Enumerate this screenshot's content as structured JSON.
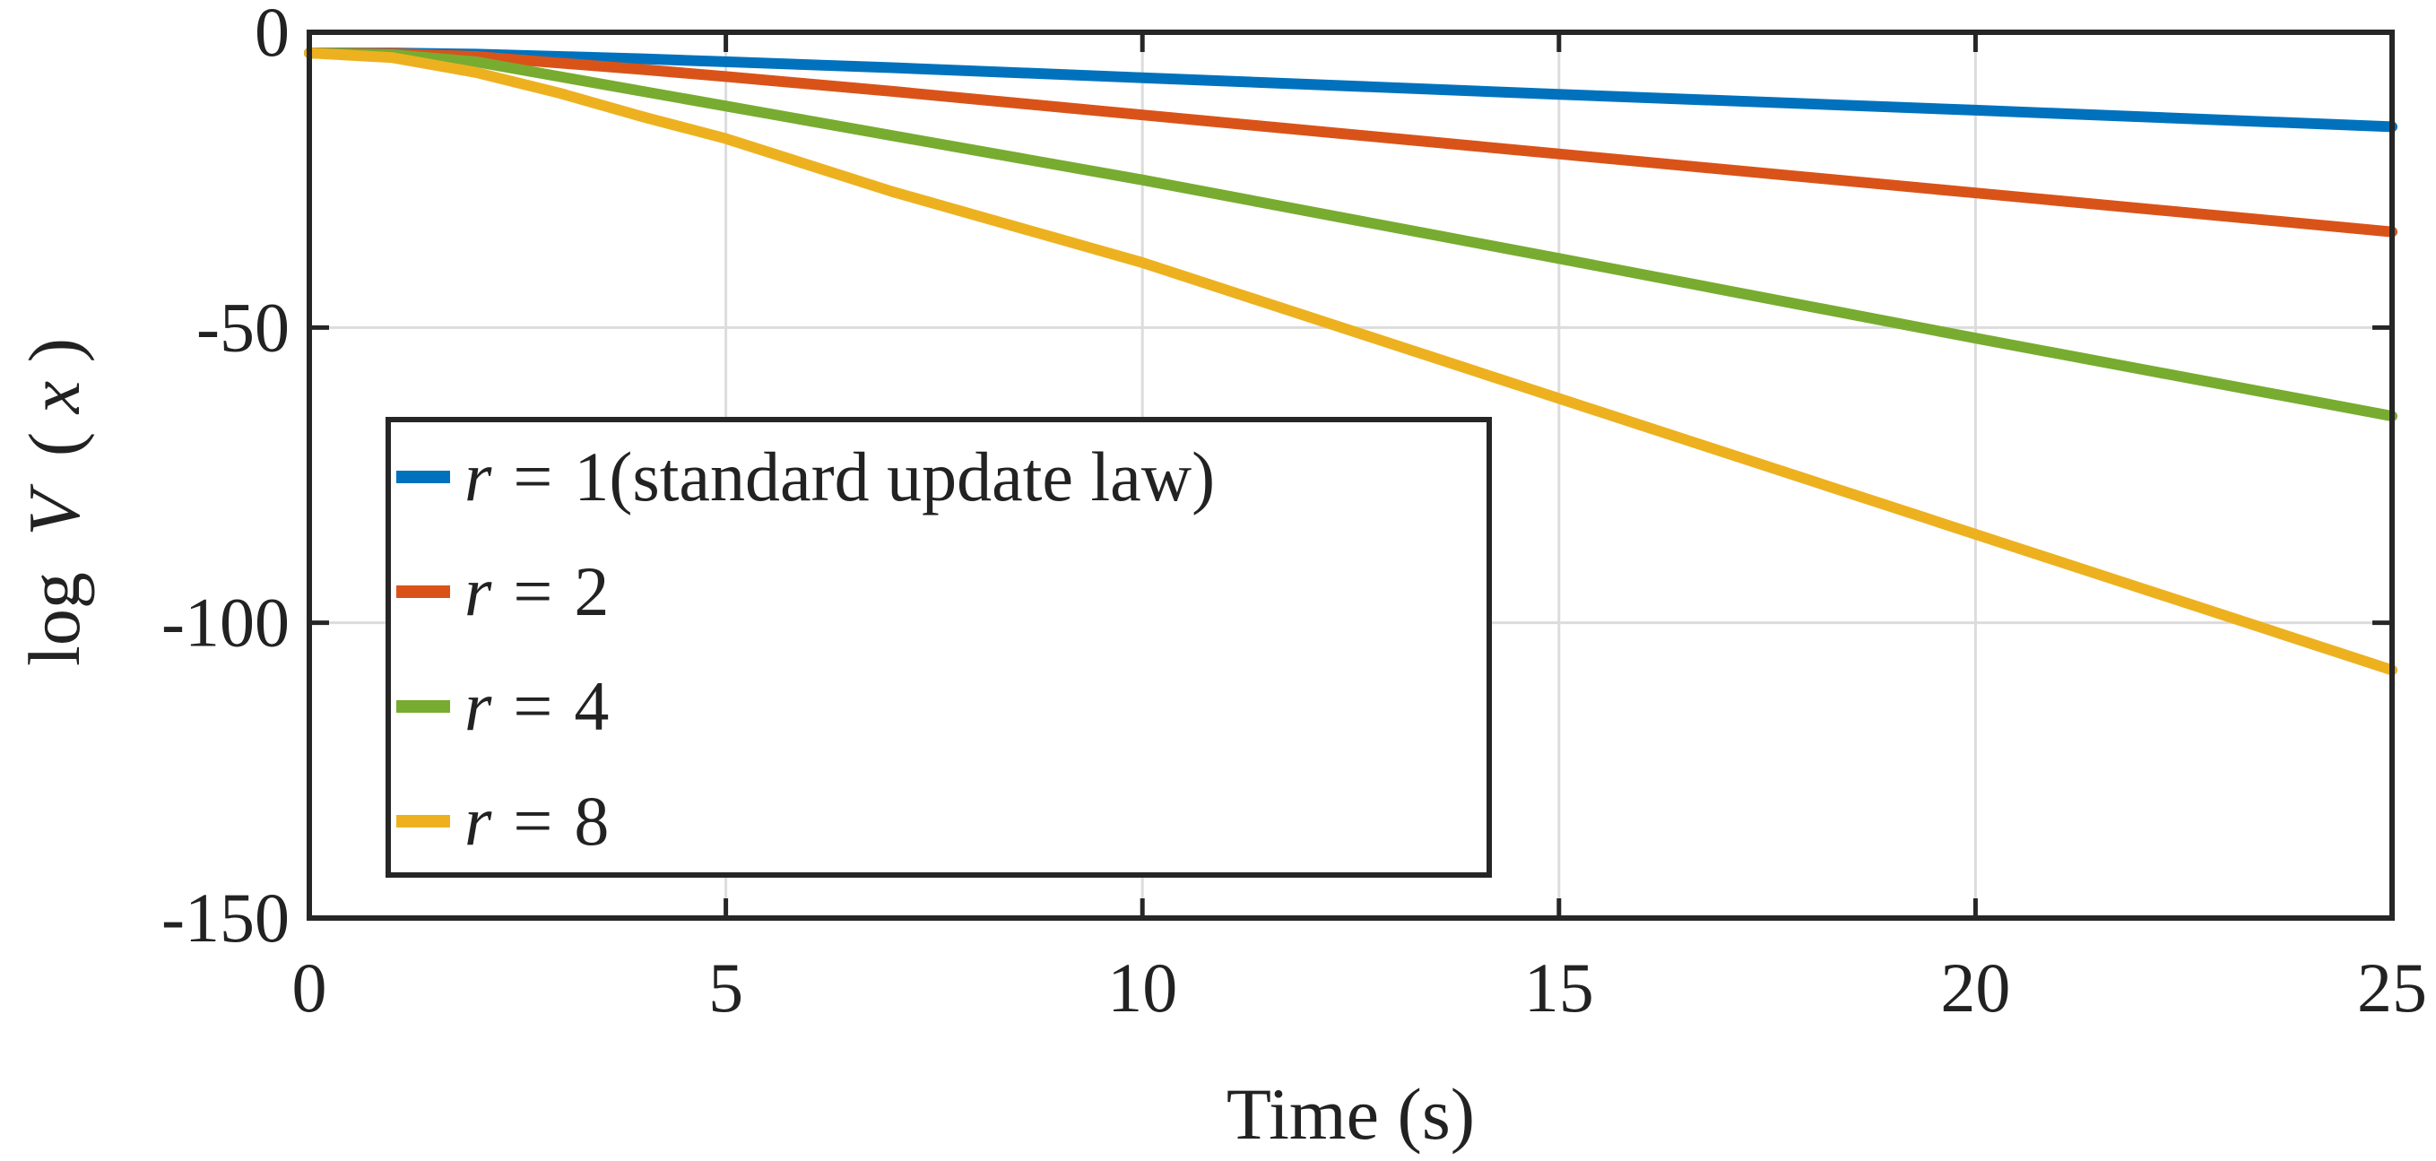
{
  "chart_data": {
    "type": "line",
    "xlabel": "Time (s)",
    "ylabel": "log",
    "ylabel_func": "V",
    "ylabel_open": "(",
    "ylabel_var": "x",
    "ylabel_close": ")",
    "xlim": [
      0,
      25
    ],
    "ylim": [
      -150,
      0
    ],
    "xticks": [
      0,
      5,
      10,
      15,
      20,
      25
    ],
    "yticks": [
      0,
      -50,
      -100,
      -150
    ],
    "xtick_labels": [
      "0",
      "5",
      "10",
      "15",
      "20",
      "25"
    ],
    "ytick_labels": [
      "0",
      "-50",
      "-100",
      "-150"
    ],
    "grid": true,
    "legend_position": "lower-left",
    "series": [
      {
        "name": "1(standard update law)",
        "name_var": "r",
        "name_eq": "=",
        "color": "#0072BD",
        "x": [
          0,
          1,
          2,
          3,
          4,
          5,
          7,
          10,
          15,
          20,
          25
        ],
        "y": [
          -3.5,
          -3.5,
          -3.7,
          -4.1,
          -4.5,
          -5,
          -6,
          -7.7,
          -10.5,
          -13.2,
          -16
        ]
      },
      {
        "name": "2",
        "name_var": "r",
        "name_eq": "=",
        "color": "#D95319",
        "x": [
          0,
          1,
          2,
          3,
          4,
          5,
          7,
          10,
          15,
          20,
          25
        ],
        "y": [
          -3.5,
          -3.6,
          -4.1,
          -5.2,
          -6.3,
          -7.5,
          -10,
          -14,
          -20.6,
          -27.2,
          -33.8
        ]
      },
      {
        "name": "4",
        "name_var": "r",
        "name_eq": "=",
        "color": "#77AC30",
        "x": [
          0,
          1,
          2,
          3,
          4,
          5,
          7,
          10,
          15,
          20,
          25
        ],
        "y": [
          -3.5,
          -3.8,
          -5,
          -7.5,
          -10,
          -12.5,
          -17.5,
          -25,
          -38.3,
          -51.8,
          -65
        ]
      },
      {
        "name": "8",
        "name_var": "r",
        "name_eq": "=",
        "color": "#EDB120",
        "x": [
          0,
          1,
          2,
          3,
          4,
          5,
          7,
          10,
          15,
          20,
          25
        ],
        "y": [
          -3.5,
          -4.3,
          -6.8,
          -10.3,
          -14.3,
          -18,
          -27,
          -39,
          -62,
          -85,
          -108
        ]
      }
    ]
  }
}
